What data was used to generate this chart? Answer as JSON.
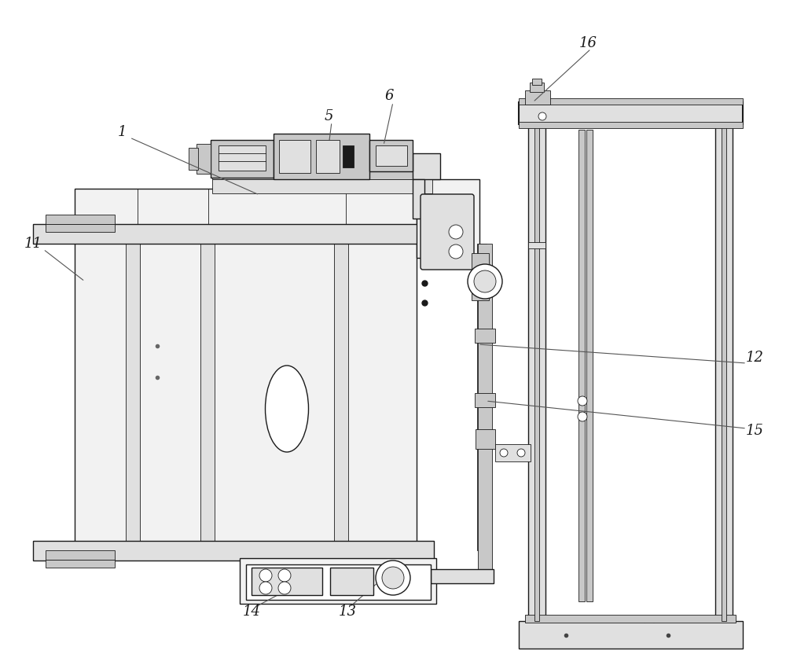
{
  "bg": "white",
  "lc": "#1a1a1a",
  "fc_light": "#f2f2f2",
  "fc_mid": "#e0e0e0",
  "fc_dark": "#c8c8c8",
  "lw_main": 1.0,
  "lw_thin": 0.6,
  "lw_thick": 1.5,
  "labels": [
    [
      "1",
      155,
      168
    ],
    [
      "5",
      418,
      148
    ],
    [
      "6",
      495,
      122
    ],
    [
      "11",
      42,
      310
    ],
    [
      "12",
      960,
      455
    ],
    [
      "13",
      442,
      778
    ],
    [
      "14",
      320,
      778
    ],
    [
      "15",
      960,
      548
    ],
    [
      "16",
      748,
      55
    ]
  ],
  "leader_lines": [
    [
      165,
      175,
      330,
      248
    ],
    [
      422,
      155,
      415,
      210
    ],
    [
      500,
      130,
      488,
      185
    ],
    [
      55,
      317,
      108,
      358
    ],
    [
      950,
      462,
      608,
      438
    ],
    [
      445,
      772,
      482,
      740
    ],
    [
      325,
      772,
      385,
      740
    ],
    [
      950,
      545,
      618,
      510
    ],
    [
      752,
      62,
      678,
      130
    ]
  ]
}
